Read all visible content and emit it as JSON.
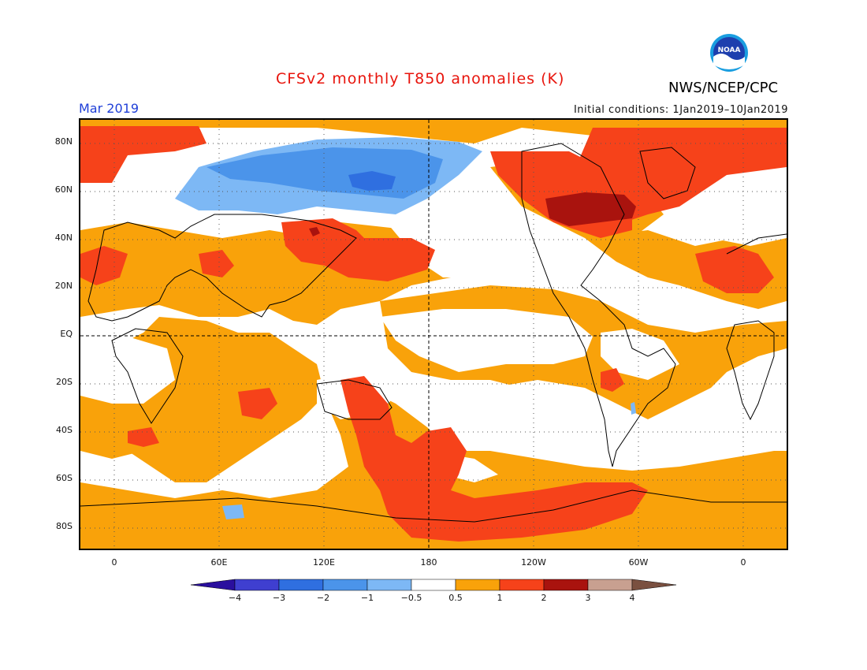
{
  "header": {
    "title": "CFSv2 monthly T850 anomalies (K)",
    "org": "NWS/NCEP/CPC",
    "month": "Mar 2019",
    "initial_conditions": "Initial conditions: 1Jan2019–10Jan2019",
    "logo_text": "NOAA"
  },
  "axes": {
    "lat_labels": [
      "80N",
      "60N",
      "40N",
      "20N",
      "EQ",
      "20S",
      "40S",
      "60S",
      "80S"
    ],
    "lon_labels": [
      "0",
      "60E",
      "120E",
      "180",
      "120W",
      "60W",
      "0"
    ]
  },
  "colorbar": {
    "labels": [
      "−4",
      "−3",
      "−2",
      "−1",
      "−0.5",
      "0.5",
      "1",
      "2",
      "3",
      "4"
    ],
    "colors": [
      "#2a0f9e",
      "#3f3fd0",
      "#2f6fe0",
      "#4b94ea",
      "#7db8f5",
      "#ffffff",
      "#f9a20a",
      "#f6421a",
      "#a9130e",
      "#c8a090",
      "#7a5040"
    ]
  },
  "palette": {
    "orange": "#f9a20a",
    "red": "#f6421a",
    "darkred": "#a9130e",
    "blue_light": "#7db8f5",
    "blue_mid": "#4b94ea",
    "blue_dark": "#2f6fe0"
  }
}
